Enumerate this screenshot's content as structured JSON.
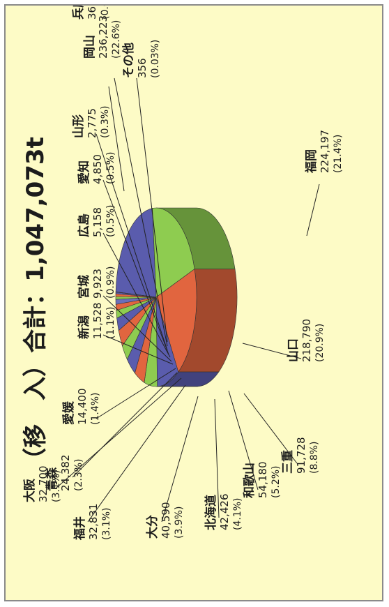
{
  "chart_data": {
    "type": "pie",
    "title": "（移　入）合計：1,047,073t",
    "slices": [
      {
        "label": "岡山",
        "value": "236,223",
        "percent": "(22.6%)",
        "pct": 22.6,
        "color": "#5a5cad"
      },
      {
        "label": "福岡",
        "value": "224,197",
        "percent": "(21.4%)",
        "pct": 21.4,
        "color": "#8ecc50"
      },
      {
        "label": "山口",
        "value": "218,790",
        "percent": "(20.9%)",
        "pct": 20.9,
        "color": "#e1653f"
      },
      {
        "label": "三重",
        "value": "91,728",
        "percent": "(8.8%)",
        "pct": 8.8,
        "color": "#5a5cad"
      },
      {
        "label": "和歌山",
        "value": "54,180",
        "percent": "(5.2%)",
        "pct": 5.2,
        "color": "#8ecc50"
      },
      {
        "label": "北海道",
        "value": "42,426",
        "percent": "(4.1%)",
        "pct": 4.1,
        "color": "#e1653f"
      },
      {
        "label": "大分",
        "value": "40,590",
        "percent": "(3.9%)",
        "pct": 3.9,
        "color": "#5a5cad"
      },
      {
        "label": "福井",
        "value": "32,831",
        "percent": "(3.1%)",
        "pct": 3.1,
        "color": "#8ecc50"
      },
      {
        "label": "大阪",
        "value": "32,700",
        "percent": "(3.1%)",
        "pct": 3.1,
        "color": "#e1653f"
      },
      {
        "label": "青森",
        "value": "24,382",
        "percent": "(2.3%)",
        "pct": 2.3,
        "color": "#5a5cad"
      },
      {
        "label": "愛媛",
        "value": "14,400",
        "percent": "(1.4%)",
        "pct": 1.4,
        "color": "#8ecc50"
      },
      {
        "label": "新潟",
        "value": "11,528",
        "percent": "(1.1%)",
        "pct": 1.1,
        "color": "#e1653f"
      },
      {
        "label": "宮城",
        "value": "9,923",
        "percent": "(0.9%)",
        "pct": 0.9,
        "color": "#6b6fb8"
      },
      {
        "label": "広島",
        "value": "5,158",
        "percent": "(0.5%)",
        "pct": 0.5,
        "color": "#8ecc50"
      },
      {
        "label": "愛知",
        "value": "4,850",
        "percent": "(0.5%)",
        "pct": 0.5,
        "color": "#e1653f"
      },
      {
        "label": "山形",
        "value": "2,775",
        "percent": "(0.3%)",
        "pct": 0.3,
        "color": "#5a5cad"
      },
      {
        "label": "兵庫",
        "value": "36",
        "percent": "(0.003%)",
        "pct": 0.003,
        "color": "#8ecc50"
      },
      {
        "label": "その他",
        "value": "356",
        "percent": "(0.03%)",
        "pct": 0.03,
        "color": "#e1653f"
      }
    ]
  }
}
